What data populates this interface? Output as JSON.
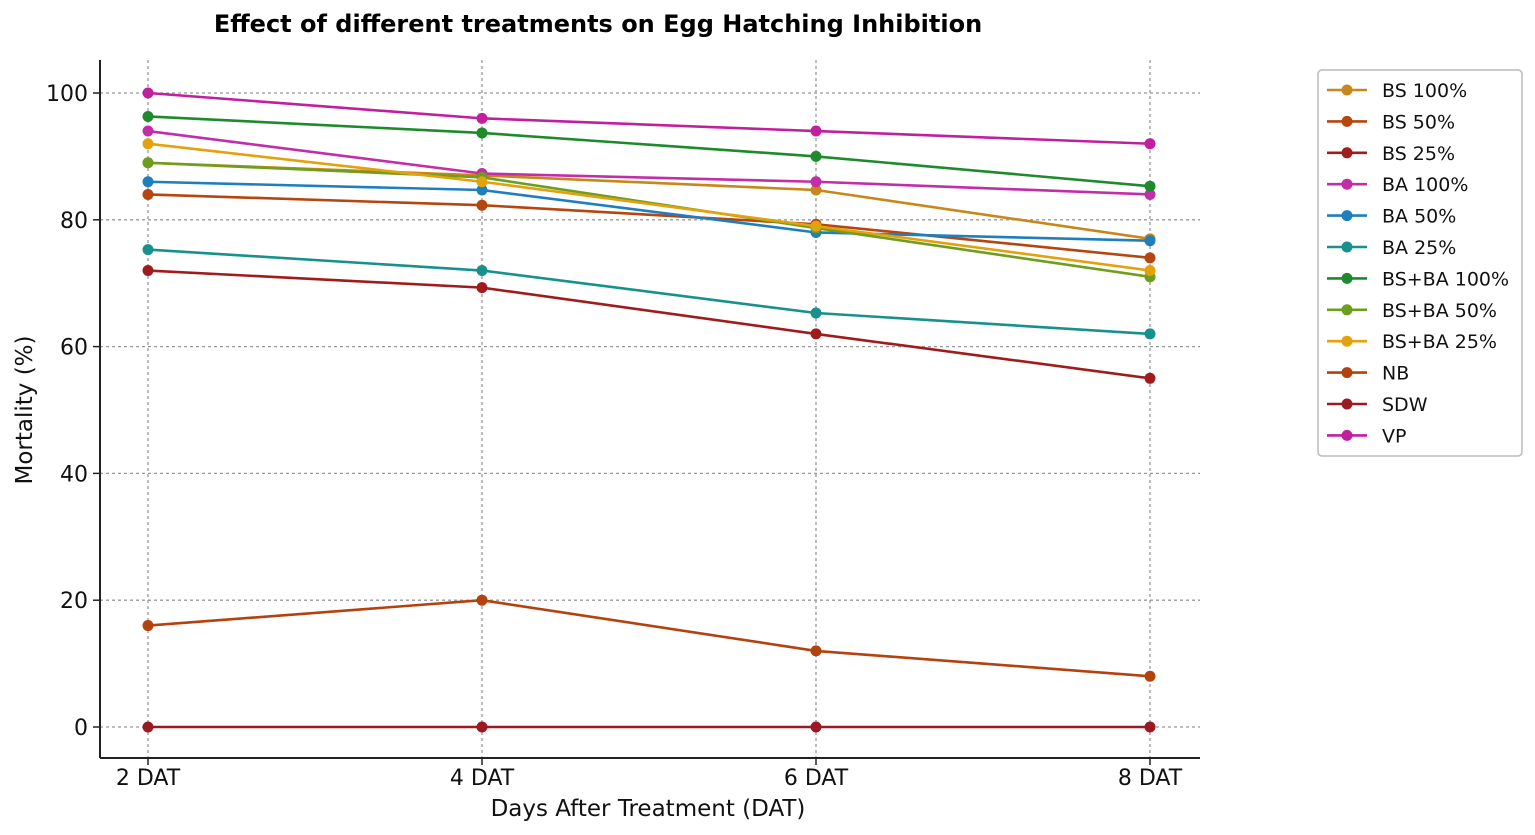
{
  "chart_data": {
    "type": "line",
    "title": "Effect of different treatments on Egg Hatching Inhibition",
    "xlabel": "Days After Treatment (DAT)",
    "ylabel": "Mortality (%)",
    "categories": [
      "2 DAT",
      "4 DAT",
      "6 DAT",
      "8 DAT"
    ],
    "ylim": [
      -5,
      105
    ],
    "yticks": [
      0,
      20,
      40,
      60,
      80,
      100
    ],
    "grid": true,
    "legend_position": "top-right, outside plot",
    "series": [
      {
        "name": "BS 100%",
        "color": "#c8871a",
        "values": [
          89,
          87,
          84.7,
          77
        ]
      },
      {
        "name": "BS 50%",
        "color": "#b5460f",
        "values": [
          84,
          82.3,
          79.3,
          74
        ]
      },
      {
        "name": "BS 25%",
        "color": "#a01c1c",
        "values": [
          72,
          69.3,
          62,
          55
        ]
      },
      {
        "name": "BA 100%",
        "color": "#c22ea8",
        "values": [
          94,
          87.3,
          86,
          84
        ]
      },
      {
        "name": "BA 50%",
        "color": "#1f7fbe",
        "values": [
          86,
          84.7,
          78,
          76.7
        ]
      },
      {
        "name": "BA 25%",
        "color": "#17918b",
        "values": [
          75.3,
          72,
          65.3,
          62
        ]
      },
      {
        "name": "BS+BA 100%",
        "color": "#1d8a2c",
        "values": [
          96.3,
          93.7,
          90,
          85.3
        ]
      },
      {
        "name": "BS+BA 50%",
        "color": "#6e9e1e",
        "values": [
          89,
          86.7,
          78.7,
          71
        ]
      },
      {
        "name": "BS+BA 25%",
        "color": "#e3a20c",
        "values": [
          92,
          86,
          79,
          72
        ]
      },
      {
        "name": "NB",
        "color": "#b3420e",
        "values": [
          16,
          20,
          12,
          8
        ]
      },
      {
        "name": "SDW",
        "color": "#9b1a22",
        "values": [
          0,
          0,
          0,
          0
        ]
      },
      {
        "name": "VP",
        "color": "#c21f9e",
        "values": [
          100,
          96,
          94,
          92
        ]
      }
    ]
  }
}
